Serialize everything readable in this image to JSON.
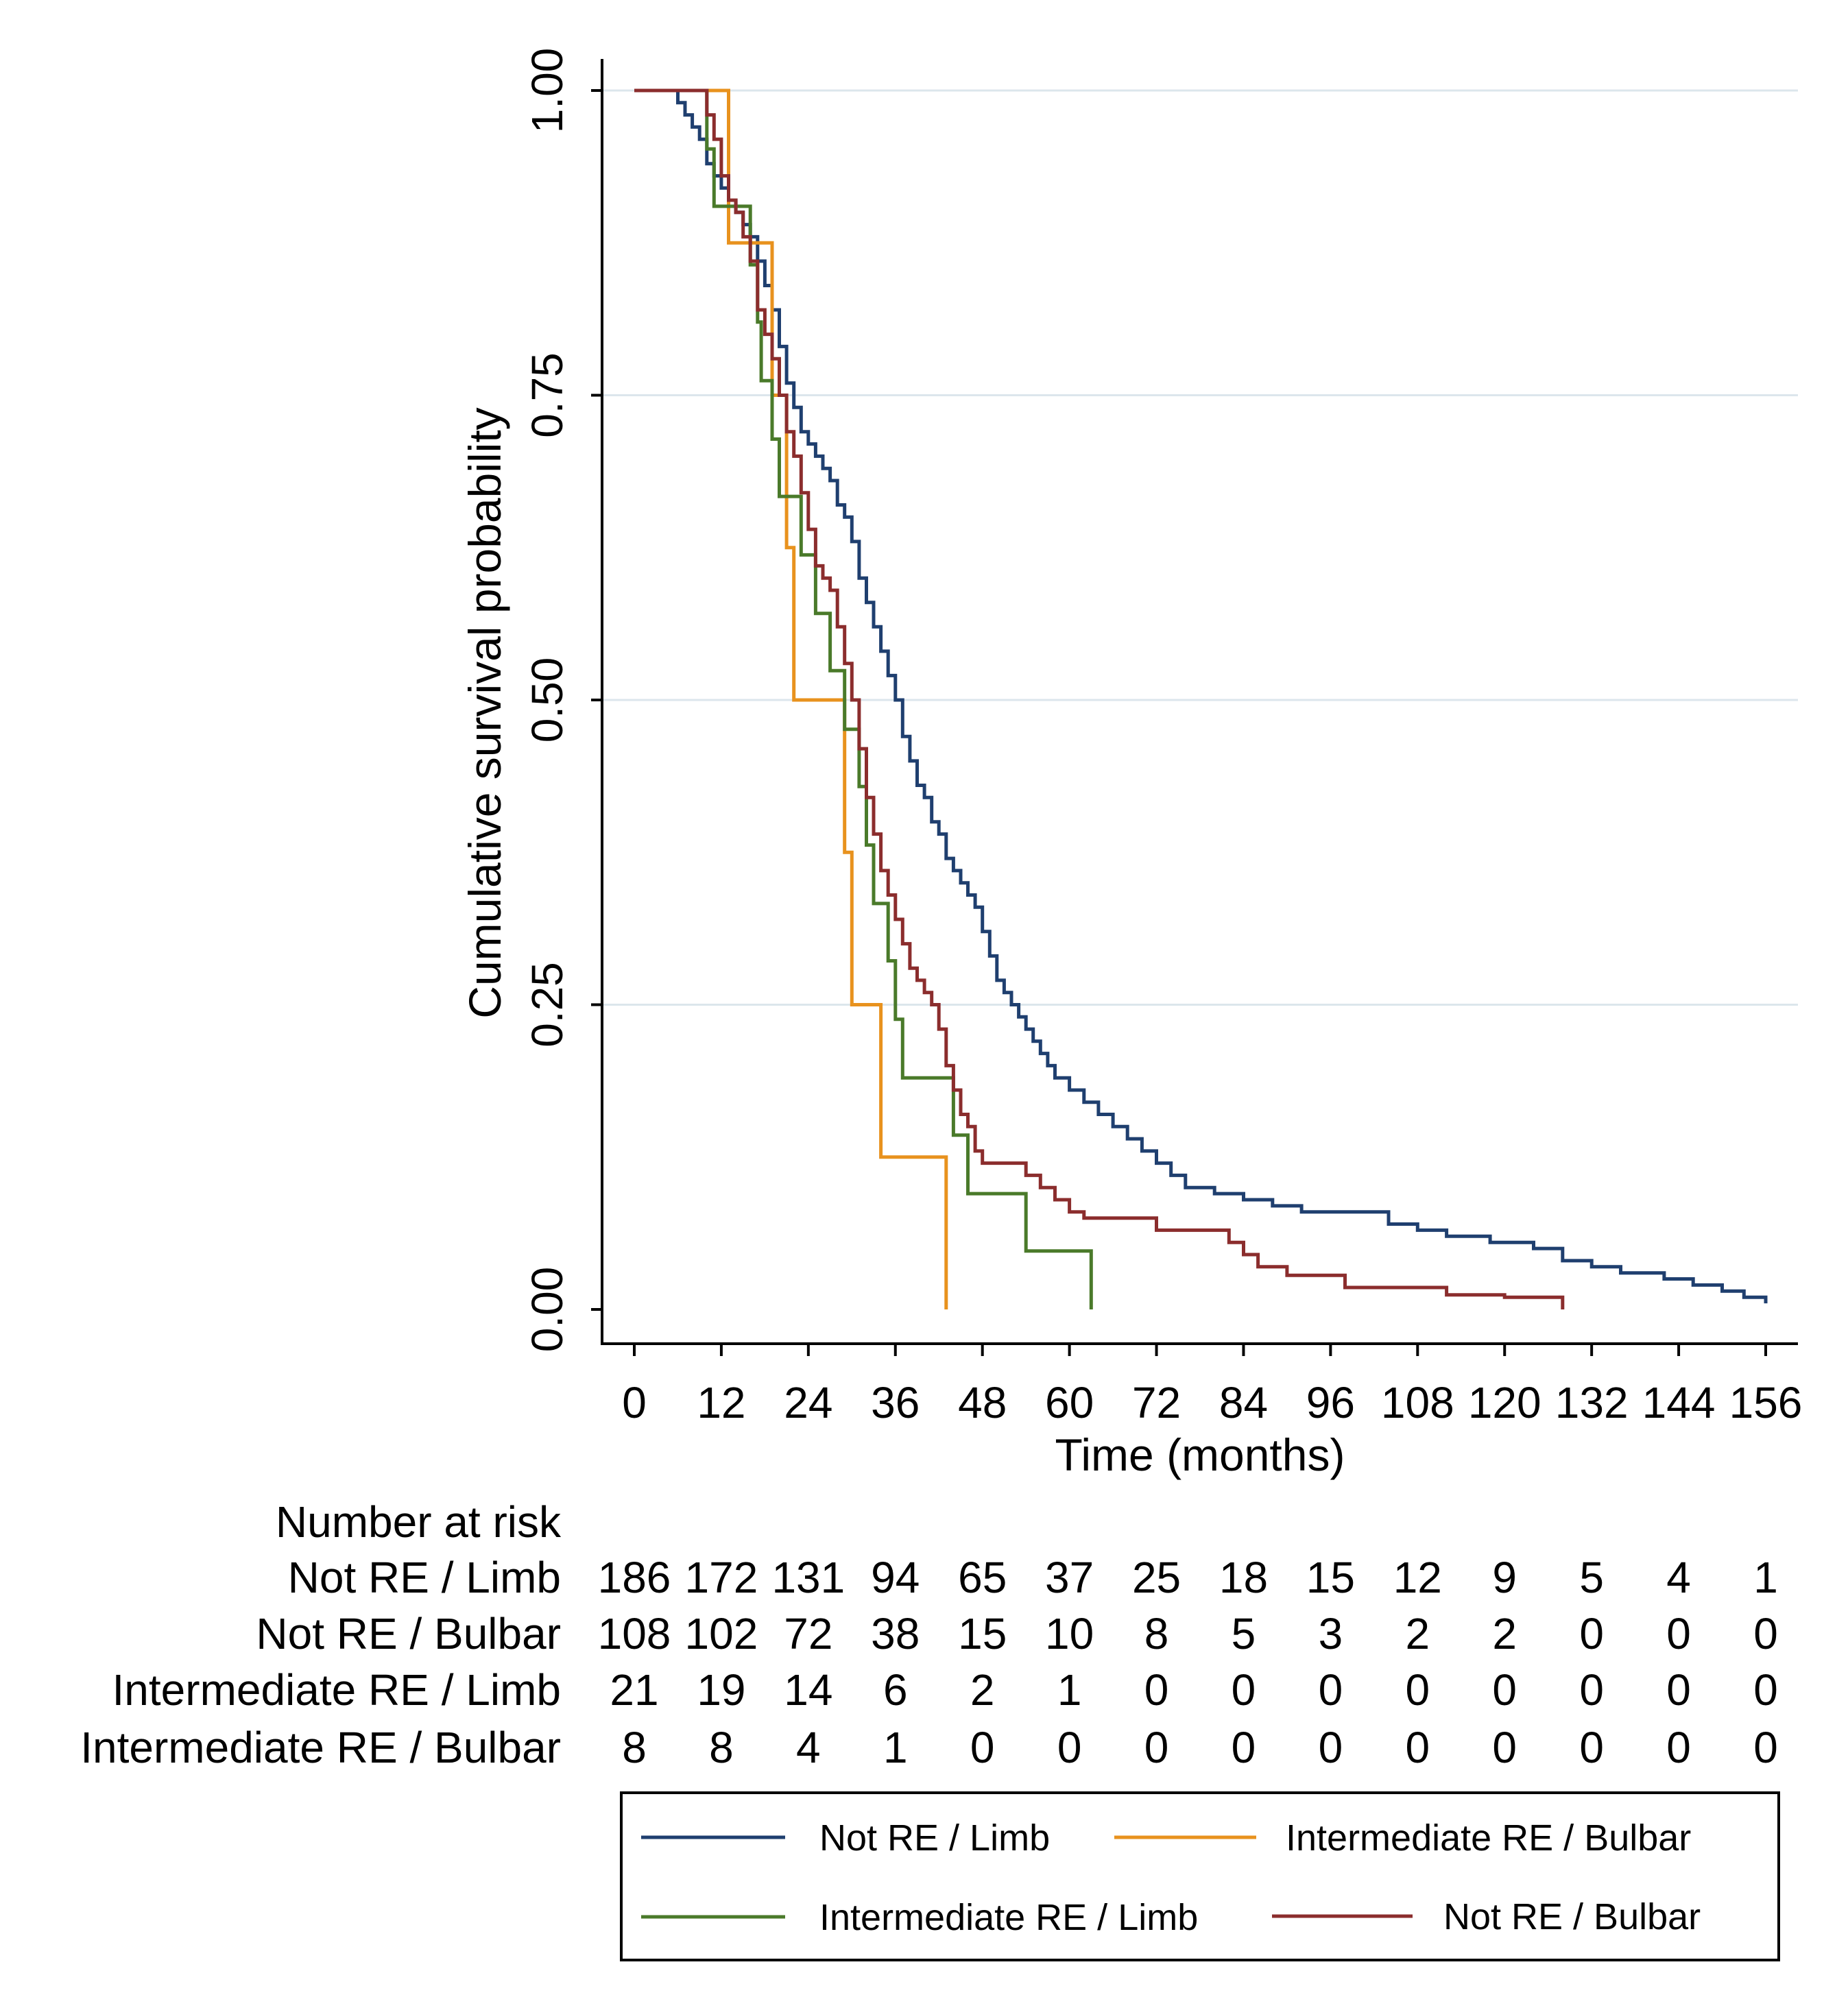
{
  "chart_data": {
    "type": "line",
    "title": "",
    "xlabel": "Time (months)",
    "ylabel": "Cumulative survival probability",
    "xlim": [
      0,
      156
    ],
    "ylim": [
      0,
      1
    ],
    "xticks": [
      0,
      12,
      24,
      36,
      48,
      60,
      72,
      84,
      96,
      108,
      120,
      132,
      144,
      156
    ],
    "yticks": [
      0,
      0.25,
      0.5,
      0.75,
      1
    ],
    "ytick_labels": [
      "0.00",
      "0.25",
      "0.50",
      "0.75",
      "1.00"
    ],
    "grid": "horizontal",
    "series": [
      {
        "name": "Not RE / Limb",
        "color": "#1f3f6f",
        "points": [
          [
            0,
            1.0
          ],
          [
            5,
            1.0
          ],
          [
            6,
            0.99
          ],
          [
            7,
            0.98
          ],
          [
            8,
            0.97
          ],
          [
            9,
            0.96
          ],
          [
            10,
            0.94
          ],
          [
            11,
            0.93
          ],
          [
            12,
            0.92
          ],
          [
            13,
            0.91
          ],
          [
            14,
            0.9
          ],
          [
            15,
            0.89
          ],
          [
            16,
            0.88
          ],
          [
            17,
            0.86
          ],
          [
            18,
            0.84
          ],
          [
            19,
            0.82
          ],
          [
            20,
            0.79
          ],
          [
            21,
            0.76
          ],
          [
            22,
            0.74
          ],
          [
            23,
            0.72
          ],
          [
            24,
            0.71
          ],
          [
            25,
            0.7
          ],
          [
            26,
            0.69
          ],
          [
            27,
            0.68
          ],
          [
            28,
            0.66
          ],
          [
            29,
            0.65
          ],
          [
            30,
            0.63
          ],
          [
            31,
            0.6
          ],
          [
            32,
            0.58
          ],
          [
            33,
            0.56
          ],
          [
            34,
            0.54
          ],
          [
            35,
            0.52
          ],
          [
            36,
            0.5
          ],
          [
            37,
            0.47
          ],
          [
            38,
            0.45
          ],
          [
            39,
            0.43
          ],
          [
            40,
            0.42
          ],
          [
            41,
            0.4
          ],
          [
            42,
            0.39
          ],
          [
            43,
            0.37
          ],
          [
            44,
            0.36
          ],
          [
            45,
            0.35
          ],
          [
            46,
            0.34
          ],
          [
            47,
            0.33
          ],
          [
            48,
            0.31
          ],
          [
            49,
            0.29
          ],
          [
            50,
            0.27
          ],
          [
            51,
            0.26
          ],
          [
            52,
            0.25
          ],
          [
            53,
            0.24
          ],
          [
            54,
            0.23
          ],
          [
            55,
            0.22
          ],
          [
            56,
            0.21
          ],
          [
            57,
            0.2
          ],
          [
            58,
            0.19
          ],
          [
            60,
            0.18
          ],
          [
            62,
            0.17
          ],
          [
            64,
            0.16
          ],
          [
            66,
            0.15
          ],
          [
            68,
            0.14
          ],
          [
            70,
            0.13
          ],
          [
            72,
            0.12
          ],
          [
            74,
            0.11
          ],
          [
            76,
            0.1
          ],
          [
            80,
            0.095
          ],
          [
            84,
            0.09
          ],
          [
            88,
            0.085
          ],
          [
            92,
            0.08
          ],
          [
            104,
            0.07
          ],
          [
            108,
            0.065
          ],
          [
            112,
            0.06
          ],
          [
            118,
            0.055
          ],
          [
            124,
            0.05
          ],
          [
            128,
            0.04
          ],
          [
            132,
            0.035
          ],
          [
            136,
            0.03
          ],
          [
            142,
            0.025
          ],
          [
            146,
            0.02
          ],
          [
            150,
            0.015
          ],
          [
            153,
            0.01
          ],
          [
            156,
            0.005
          ]
        ]
      },
      {
        "name": "Intermediate RE / Bulbar",
        "color": "#e8921e",
        "points": [
          [
            0,
            1.0
          ],
          [
            13,
            1.0
          ],
          [
            13,
            0.875
          ],
          [
            19,
            0.875
          ],
          [
            19,
            0.75
          ],
          [
            21,
            0.75
          ],
          [
            21,
            0.625
          ],
          [
            22,
            0.625
          ],
          [
            22,
            0.5
          ],
          [
            29,
            0.5
          ],
          [
            29,
            0.375
          ],
          [
            30,
            0.375
          ],
          [
            30,
            0.25
          ],
          [
            34,
            0.25
          ],
          [
            34,
            0.125
          ],
          [
            43,
            0.125
          ],
          [
            43,
            0.0
          ]
        ]
      },
      {
        "name": "Intermediate RE / Limb",
        "color": "#4a7a2a",
        "points": [
          [
            0,
            1.0
          ],
          [
            10,
            1.0
          ],
          [
            10,
            0.952
          ],
          [
            11,
            0.952
          ],
          [
            11,
            0.905
          ],
          [
            16,
            0.905
          ],
          [
            16,
            0.857
          ],
          [
            17,
            0.857
          ],
          [
            17,
            0.81
          ],
          [
            17.5,
            0.81
          ],
          [
            17.5,
            0.762
          ],
          [
            19,
            0.762
          ],
          [
            19,
            0.714
          ],
          [
            20,
            0.714
          ],
          [
            20,
            0.667
          ],
          [
            23,
            0.667
          ],
          [
            23,
            0.619
          ],
          [
            25,
            0.619
          ],
          [
            25,
            0.571
          ],
          [
            27,
            0.571
          ],
          [
            27,
            0.524
          ],
          [
            29,
            0.524
          ],
          [
            29,
            0.476
          ],
          [
            31,
            0.476
          ],
          [
            31,
            0.429
          ],
          [
            32,
            0.429
          ],
          [
            32,
            0.381
          ],
          [
            33,
            0.381
          ],
          [
            33,
            0.333
          ],
          [
            35,
            0.333
          ],
          [
            35,
            0.286
          ],
          [
            36,
            0.286
          ],
          [
            36,
            0.238
          ],
          [
            37,
            0.238
          ],
          [
            37,
            0.19
          ],
          [
            44,
            0.19
          ],
          [
            44,
            0.143
          ],
          [
            46,
            0.143
          ],
          [
            46,
            0.095
          ],
          [
            54,
            0.095
          ],
          [
            54,
            0.048
          ],
          [
            63,
            0.048
          ],
          [
            63,
            0.0
          ]
        ]
      },
      {
        "name": "Not RE / Bulbar",
        "color": "#8b2d2d",
        "points": [
          [
            0,
            1.0
          ],
          [
            9,
            1.0
          ],
          [
            10,
            0.98
          ],
          [
            11,
            0.96
          ],
          [
            12,
            0.93
          ],
          [
            13,
            0.91
          ],
          [
            14,
            0.9
          ],
          [
            15,
            0.88
          ],
          [
            16,
            0.86
          ],
          [
            17,
            0.82
          ],
          [
            18,
            0.8
          ],
          [
            19,
            0.78
          ],
          [
            20,
            0.75
          ],
          [
            21,
            0.72
          ],
          [
            22,
            0.7
          ],
          [
            23,
            0.67
          ],
          [
            24,
            0.64
          ],
          [
            25,
            0.61
          ],
          [
            26,
            0.6
          ],
          [
            27,
            0.59
          ],
          [
            28,
            0.56
          ],
          [
            29,
            0.53
          ],
          [
            30,
            0.5
          ],
          [
            31,
            0.46
          ],
          [
            32,
            0.42
          ],
          [
            33,
            0.39
          ],
          [
            34,
            0.36
          ],
          [
            35,
            0.34
          ],
          [
            36,
            0.32
          ],
          [
            37,
            0.3
          ],
          [
            38,
            0.28
          ],
          [
            39,
            0.27
          ],
          [
            40,
            0.26
          ],
          [
            41,
            0.25
          ],
          [
            42,
            0.23
          ],
          [
            43,
            0.2
          ],
          [
            44,
            0.18
          ],
          [
            45,
            0.16
          ],
          [
            46,
            0.15
          ],
          [
            47,
            0.13
          ],
          [
            48,
            0.12
          ],
          [
            54,
            0.11
          ],
          [
            56,
            0.1
          ],
          [
            58,
            0.09
          ],
          [
            60,
            0.08
          ],
          [
            62,
            0.075
          ],
          [
            72,
            0.065
          ],
          [
            82,
            0.055
          ],
          [
            84,
            0.045
          ],
          [
            86,
            0.035
          ],
          [
            90,
            0.028
          ],
          [
            98,
            0.018
          ],
          [
            112,
            0.012
          ],
          [
            120,
            0.01
          ],
          [
            128,
            0.005
          ],
          [
            128,
            0.0
          ]
        ]
      }
    ],
    "risk_table": {
      "title": "Number at risk",
      "times": [
        0,
        12,
        24,
        36,
        48,
        60,
        72,
        84,
        96,
        108,
        120,
        132,
        144,
        156
      ],
      "rows": [
        {
          "label": "Not RE / Limb",
          "counts": [
            186,
            172,
            131,
            94,
            65,
            37,
            25,
            18,
            15,
            12,
            9,
            5,
            4,
            1
          ]
        },
        {
          "label": "Not RE / Bulbar",
          "counts": [
            108,
            102,
            72,
            38,
            15,
            10,
            8,
            5,
            3,
            2,
            2,
            0,
            0,
            0
          ]
        },
        {
          "label": "Intermediate RE / Limb",
          "counts": [
            21,
            19,
            14,
            6,
            2,
            1,
            0,
            0,
            0,
            0,
            0,
            0,
            0,
            0
          ]
        },
        {
          "label": "Intermediate RE / Bulbar",
          "counts": [
            8,
            8,
            4,
            1,
            0,
            0,
            0,
            0,
            0,
            0,
            0,
            0,
            0,
            0
          ]
        }
      ]
    },
    "legend": {
      "placement": "bottom",
      "entries": [
        "Not RE / Limb",
        "Intermediate RE / Bulbar",
        "Intermediate RE / Limb",
        "Not RE / Bulbar"
      ]
    },
    "colors": {
      "gridline": "#dce6ec",
      "axis": "#000000"
    }
  }
}
